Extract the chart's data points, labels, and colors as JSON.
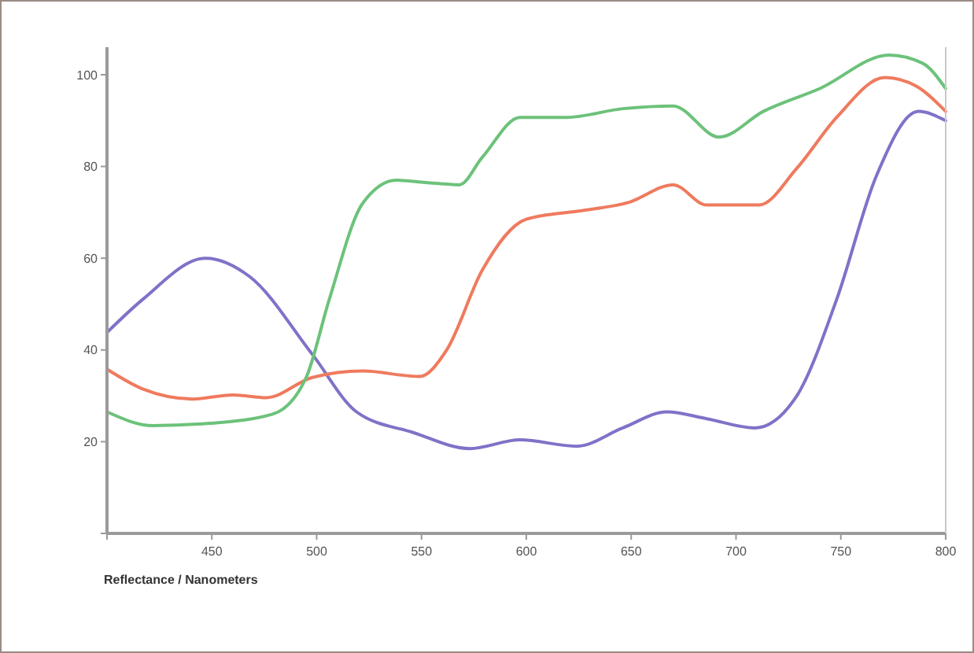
{
  "chart_data": {
    "type": "line",
    "xlabel": "Reflectance / Nanometers",
    "xlim": [
      400,
      800
    ],
    "xticks": [
      {
        "value": 400,
        "label": null
      },
      450,
      500,
      550,
      600,
      650,
      700,
      750,
      800
    ],
    "ylim": [
      0,
      106
    ],
    "yticks": [
      {
        "value": 0,
        "label": null
      },
      20,
      40,
      60,
      80,
      100
    ],
    "marker": "none",
    "line_style": "solid",
    "series": [
      {
        "color": "#7f72c8",
        "x": [
          400,
          417,
          447,
          468,
          498,
          519,
          546,
          573,
          597,
          624,
          646,
          667,
          686,
          709,
          729,
          748,
          767,
          787,
          800
        ],
        "values": [
          43.8,
          51,
          60,
          56,
          39,
          26.5,
          22,
          18.5,
          20.4,
          19,
          23,
          26.5,
          25,
          23,
          30,
          51,
          78,
          92,
          90
        ]
      },
      {
        "color": "#ef7a5e",
        "x": [
          400,
          417,
          441,
          460,
          476,
          498,
          522,
          549,
          562,
          579,
          600,
          627,
          649,
          670,
          686,
          711,
          729,
          748,
          771,
          786,
          800
        ],
        "values": [
          35.8,
          31.5,
          29.3,
          30.2,
          29.6,
          34,
          35.4,
          34.2,
          40,
          57.4,
          68.5,
          70.4,
          72.2,
          76,
          71.6,
          71.6,
          79.6,
          90.7,
          99.4,
          97.5,
          92
        ]
      },
      {
        "color": "#6cc27a",
        "x": [
          400,
          422,
          449,
          479,
          495,
          506,
          522,
          538,
          552,
          568,
          579,
          597,
          619,
          646,
          670,
          692,
          713,
          740,
          773,
          789,
          800
        ],
        "values": [
          26.5,
          23.5,
          24,
          26,
          34,
          51,
          72,
          77,
          76.5,
          76,
          82,
          90.7,
          90.7,
          92.6,
          93.2,
          86.4,
          92,
          97,
          104.3,
          102.5,
          97
        ]
      }
    ]
  }
}
